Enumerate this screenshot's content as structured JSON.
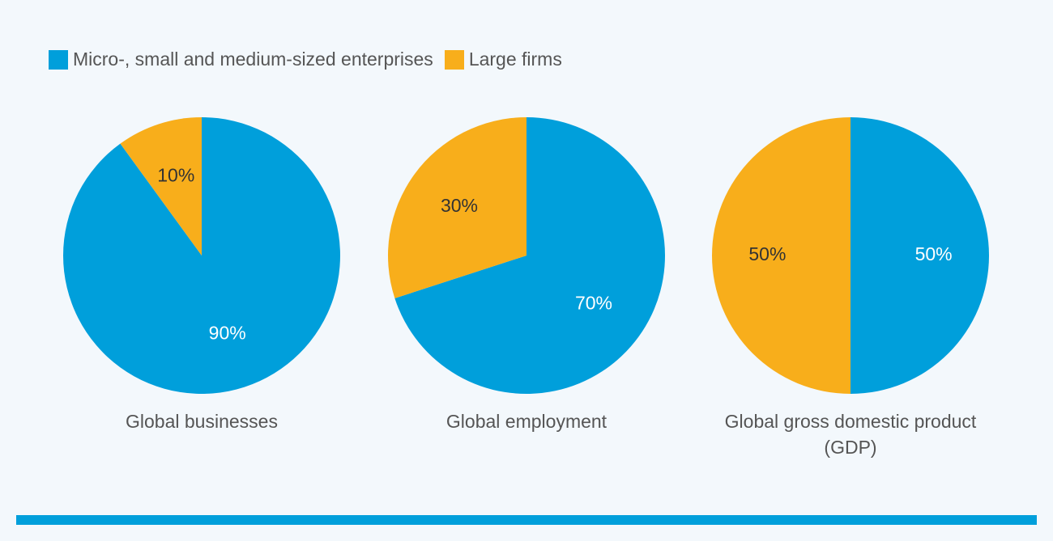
{
  "legend": [
    {
      "name": "Micro-, small and medium-sized enterprises",
      "color": "#009fdb"
    },
    {
      "name": "Large firms",
      "color": "#f8ae1b"
    }
  ],
  "chart_data": [
    {
      "type": "pie",
      "title": "Global businesses",
      "values": [
        90,
        10
      ],
      "value_labels": [
        "90%",
        "10%"
      ],
      "colors": [
        "#009fdb",
        "#f8ae1b"
      ]
    },
    {
      "type": "pie",
      "title": "Global employment",
      "values": [
        70,
        30
      ],
      "value_labels": [
        "70%",
        "30%"
      ],
      "colors": [
        "#009fdb",
        "#f8ae1b"
      ]
    },
    {
      "type": "pie",
      "title": "Global gross domestic product (GDP)",
      "values": [
        50,
        50
      ],
      "value_labels": [
        "50%",
        "50%"
      ],
      "colors": [
        "#009fdb",
        "#f8ae1b"
      ]
    }
  ]
}
